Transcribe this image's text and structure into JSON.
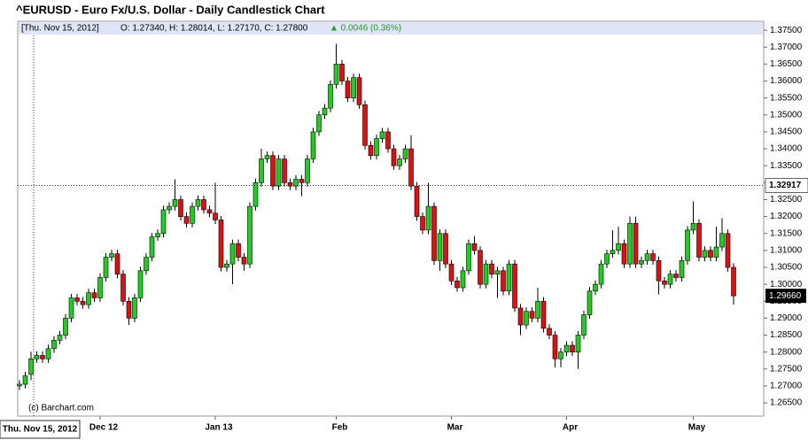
{
  "chart_data": {
    "type": "candlestick",
    "title": "^EURUSD - Euro Fx/U.S. Dollar - Daily Candlestick Chart",
    "header_date": "[Thu. Nov 15, 2012]",
    "header_ohlc": "O: 1.27340, H: 1.28014, L: 1.27170, C: 1.27800",
    "header_change": "▲ 0.0046 (0.36%)",
    "crosshair_date": "Thu. Nov 15, 2012",
    "crosshair_price": {
      "value": 1.32917,
      "label": "1.32917"
    },
    "last_price": {
      "value": 1.2966,
      "label": "1.29660"
    },
    "credit": "(c) Barchart.com",
    "up_color": "#22cc22",
    "down_color": "#dd1111",
    "categories": [
      null,
      null,
      null,
      null,
      null,
      null,
      null,
      null,
      null,
      null,
      null,
      null,
      null,
      null,
      "Dec 12",
      null,
      null,
      null,
      null,
      null,
      null,
      null,
      null,
      null,
      null,
      null,
      null,
      null,
      null,
      null,
      null,
      null,
      null,
      null,
      "Jan 13",
      null,
      null,
      null,
      null,
      null,
      null,
      null,
      null,
      null,
      null,
      null,
      null,
      null,
      null,
      null,
      null,
      null,
      null,
      null,
      null,
      "Feb",
      null,
      null,
      null,
      null,
      null,
      null,
      null,
      null,
      null,
      null,
      null,
      null,
      null,
      null,
      null,
      null,
      null,
      null,
      null,
      "Mar",
      null,
      null,
      null,
      null,
      null,
      null,
      null,
      null,
      null,
      null,
      null,
      null,
      null,
      null,
      null,
      null,
      null,
      null,
      null,
      "Apr",
      null,
      null,
      null,
      null,
      null,
      null,
      null,
      null,
      null,
      null,
      null,
      null,
      null,
      null,
      null,
      null,
      null,
      null,
      null,
      null,
      null,
      "May",
      null,
      null,
      null,
      null,
      null,
      null,
      null
    ],
    "open": [
      1.27,
      1.2705,
      1.2734,
      1.278,
      1.279,
      1.278,
      1.281,
      1.2835,
      1.285,
      1.29,
      1.296,
      1.295,
      1.294,
      1.2975,
      1.296,
      1.302,
      1.308,
      1.309,
      1.303,
      1.295,
      1.29,
      1.296,
      1.304,
      1.308,
      1.314,
      1.315,
      1.322,
      1.323,
      1.325,
      1.32,
      1.318,
      1.323,
      1.325,
      1.322,
      1.321,
      1.319,
      1.305,
      1.306,
      1.312,
      1.308,
      1.306,
      1.323,
      1.33,
      1.337,
      1.338,
      1.329,
      1.337,
      1.33,
      1.329,
      1.331,
      1.33,
      1.337,
      1.345,
      1.35,
      1.352,
      1.359,
      1.365,
      1.36,
      1.355,
      1.361,
      1.353,
      1.341,
      1.338,
      1.343,
      1.345,
      1.34,
      1.335,
      1.337,
      1.34,
      1.329,
      1.32,
      1.316,
      1.323,
      1.307,
      1.315,
      1.306,
      1.301,
      1.299,
      1.304,
      1.312,
      1.31,
      1.3,
      1.306,
      1.303,
      1.304,
      1.298,
      1.306,
      1.293,
      1.288,
      1.292,
      1.29,
      1.295,
      1.287,
      1.285,
      1.278,
      1.28,
      1.282,
      1.28,
      1.285,
      1.291,
      1.298,
      1.3,
      1.306,
      1.309,
      1.31,
      1.312,
      1.306,
      1.318,
      1.306,
      1.307,
      1.309,
      1.307,
      1.301,
      1.3,
      1.303,
      1.302,
      1.307,
      1.316,
      1.318,
      1.308,
      1.31,
      1.308,
      1.311,
      1.315,
      1.305
    ],
    "high": [
      1.2717,
      1.2742,
      1.2801,
      1.2802,
      1.2802,
      1.2822,
      1.2847,
      1.2862,
      1.2912,
      1.2972,
      1.2972,
      1.2962,
      1.2987,
      1.2987,
      1.3032,
      1.3092,
      1.3102,
      1.3102,
      1.3042,
      1.2962,
      1.2972,
      1.3052,
      1.3092,
      1.3152,
      1.3162,
      1.3232,
      1.3242,
      1.331,
      1.3262,
      1.3212,
      1.3242,
      1.3262,
      1.3262,
      1.3232,
      1.33,
      1.3202,
      1.3072,
      1.3132,
      1.3132,
      1.3092,
      1.3242,
      1.3312,
      1.34,
      1.3392,
      1.3392,
      1.3382,
      1.3382,
      1.3312,
      1.3322,
      1.3322,
      1.3382,
      1.3462,
      1.3512,
      1.3532,
      1.3602,
      1.371,
      1.3662,
      1.3612,
      1.3622,
      1.3622,
      1.3542,
      1.3422,
      1.3442,
      1.3462,
      1.3462,
      1.3412,
      1.3382,
      1.3412,
      1.344,
      1.3302,
      1.3212,
      1.33,
      1.3242,
      1.3162,
      1.3162,
      1.3072,
      1.3022,
      1.3052,
      1.3132,
      1.3142,
      1.3112,
      1.3072,
      1.3072,
      1.3052,
      1.3052,
      1.3072,
      1.3072,
      1.2942,
      1.2932,
      1.2932,
      1.299,
      1.2962,
      1.2882,
      1.2862,
      1.2812,
      1.2832,
      1.2832,
      1.2862,
      1.2922,
      1.2992,
      1.3012,
      1.3072,
      1.3102,
      1.316,
      1.317,
      1.3132,
      1.32,
      1.32,
      1.3082,
      1.3102,
      1.3102,
      1.3082,
      1.3022,
      1.3042,
      1.3042,
      1.3082,
      1.3172,
      1.3245,
      1.3192,
      1.3112,
      1.3112,
      1.317,
      1.3195,
      1.3162,
      1.3062
    ],
    "low": [
      1.2688,
      1.2693,
      1.2717,
      1.2768,
      1.2768,
      1.2768,
      1.2798,
      1.2823,
      1.2838,
      1.2888,
      1.2938,
      1.2928,
      1.2928,
      1.2948,
      1.2948,
      1.3008,
      1.3068,
      1.3018,
      1.2938,
      1.288,
      1.2888,
      1.2948,
      1.3028,
      1.3068,
      1.3128,
      1.3138,
      1.3208,
      1.3218,
      1.3188,
      1.3168,
      1.3168,
      1.3218,
      1.3208,
      1.3198,
      1.3178,
      1.3038,
      1.3038,
      1.3,
      1.3068,
      1.304,
      1.3048,
      1.3218,
      1.3288,
      1.3358,
      1.3278,
      1.3278,
      1.3288,
      1.3278,
      1.3278,
      1.326,
      1.3288,
      1.3358,
      1.3438,
      1.3488,
      1.3508,
      1.3578,
      1.3588,
      1.3538,
      1.3538,
      1.3518,
      1.3398,
      1.3368,
      1.3368,
      1.3418,
      1.3388,
      1.3338,
      1.3338,
      1.3358,
      1.3278,
      1.3188,
      1.3148,
      1.3148,
      1.3058,
      1.304,
      1.3048,
      1.2998,
      1.2978,
      1.2978,
      1.3028,
      1.3088,
      1.2988,
      1.2988,
      1.3018,
      1.296,
      1.2968,
      1.2968,
      1.2918,
      1.285,
      1.2868,
      1.2888,
      1.2888,
      1.2858,
      1.2838,
      1.2755,
      1.2755,
      1.2788,
      1.2788,
      1.275,
      1.2838,
      1.2898,
      1.2968,
      1.2988,
      1.3048,
      1.3078,
      1.3088,
      1.3048,
      1.3048,
      1.3048,
      1.3048,
      1.3058,
      1.3058,
      1.297,
      1.2988,
      1.2988,
      1.3008,
      1.3008,
      1.3058,
      1.3148,
      1.3068,
      1.3068,
      1.3068,
      1.3068,
      1.3098,
      1.3038,
      1.294
    ],
    "close": [
      1.2705,
      1.273,
      1.278,
      1.279,
      1.278,
      1.281,
      1.2835,
      1.285,
      1.29,
      1.296,
      1.295,
      1.294,
      1.2975,
      1.296,
      1.302,
      1.308,
      1.309,
      1.303,
      1.295,
      1.29,
      1.296,
      1.304,
      1.308,
      1.314,
      1.315,
      1.322,
      1.323,
      1.325,
      1.32,
      1.318,
      1.323,
      1.325,
      1.322,
      1.321,
      1.319,
      1.305,
      1.306,
      1.312,
      1.308,
      1.306,
      1.323,
      1.33,
      1.337,
      1.338,
      1.329,
      1.337,
      1.33,
      1.329,
      1.331,
      1.33,
      1.337,
      1.345,
      1.35,
      1.352,
      1.359,
      1.365,
      1.36,
      1.355,
      1.361,
      1.353,
      1.341,
      1.338,
      1.343,
      1.345,
      1.34,
      1.335,
      1.337,
      1.34,
      1.329,
      1.32,
      1.316,
      1.323,
      1.307,
      1.315,
      1.306,
      1.301,
      1.299,
      1.304,
      1.312,
      1.31,
      1.3,
      1.306,
      1.303,
      1.304,
      1.298,
      1.306,
      1.293,
      1.288,
      1.292,
      1.29,
      1.295,
      1.287,
      1.285,
      1.278,
      1.28,
      1.282,
      1.28,
      1.285,
      1.291,
      1.298,
      1.3,
      1.306,
      1.309,
      1.31,
      1.312,
      1.306,
      1.318,
      1.306,
      1.307,
      1.309,
      1.307,
      1.301,
      1.3,
      1.303,
      1.302,
      1.307,
      1.316,
      1.318,
      1.308,
      1.31,
      1.308,
      1.311,
      1.315,
      1.305,
      1.2966
    ],
    "ylim": [
      1.2611,
      1.3766
    ],
    "yticks": [
      {
        "value": 1.265,
        "label": "1.26500"
      },
      {
        "value": 1.27,
        "label": "1.27000"
      },
      {
        "value": 1.275,
        "label": "1.27500"
      },
      {
        "value": 1.28,
        "label": "1.28000"
      },
      {
        "value": 1.285,
        "label": "1.28500"
      },
      {
        "value": 1.29,
        "label": "1.29000"
      },
      {
        "value": 1.295,
        "label": "1.29500"
      },
      {
        "value": 1.3,
        "label": "1.30000"
      },
      {
        "value": 1.305,
        "label": "1.30500"
      },
      {
        "value": 1.31,
        "label": "1.31000"
      },
      {
        "value": 1.315,
        "label": "1.31500"
      },
      {
        "value": 1.32,
        "label": "1.32000"
      },
      {
        "value": 1.325,
        "label": "1.32500"
      },
      {
        "value": 1.33,
        "label": "1.33000"
      },
      {
        "value": 1.335,
        "label": "1.33500"
      },
      {
        "value": 1.34,
        "label": "1.34000"
      },
      {
        "value": 1.345,
        "label": "1.34500"
      },
      {
        "value": 1.35,
        "label": "1.35000"
      },
      {
        "value": 1.355,
        "label": "1.35500"
      },
      {
        "value": 1.36,
        "label": "1.36000"
      },
      {
        "value": 1.365,
        "label": "1.36500"
      },
      {
        "value": 1.37,
        "label": "1.37000"
      },
      {
        "value": 1.375,
        "label": "1.37500"
      }
    ],
    "grid": false
  }
}
